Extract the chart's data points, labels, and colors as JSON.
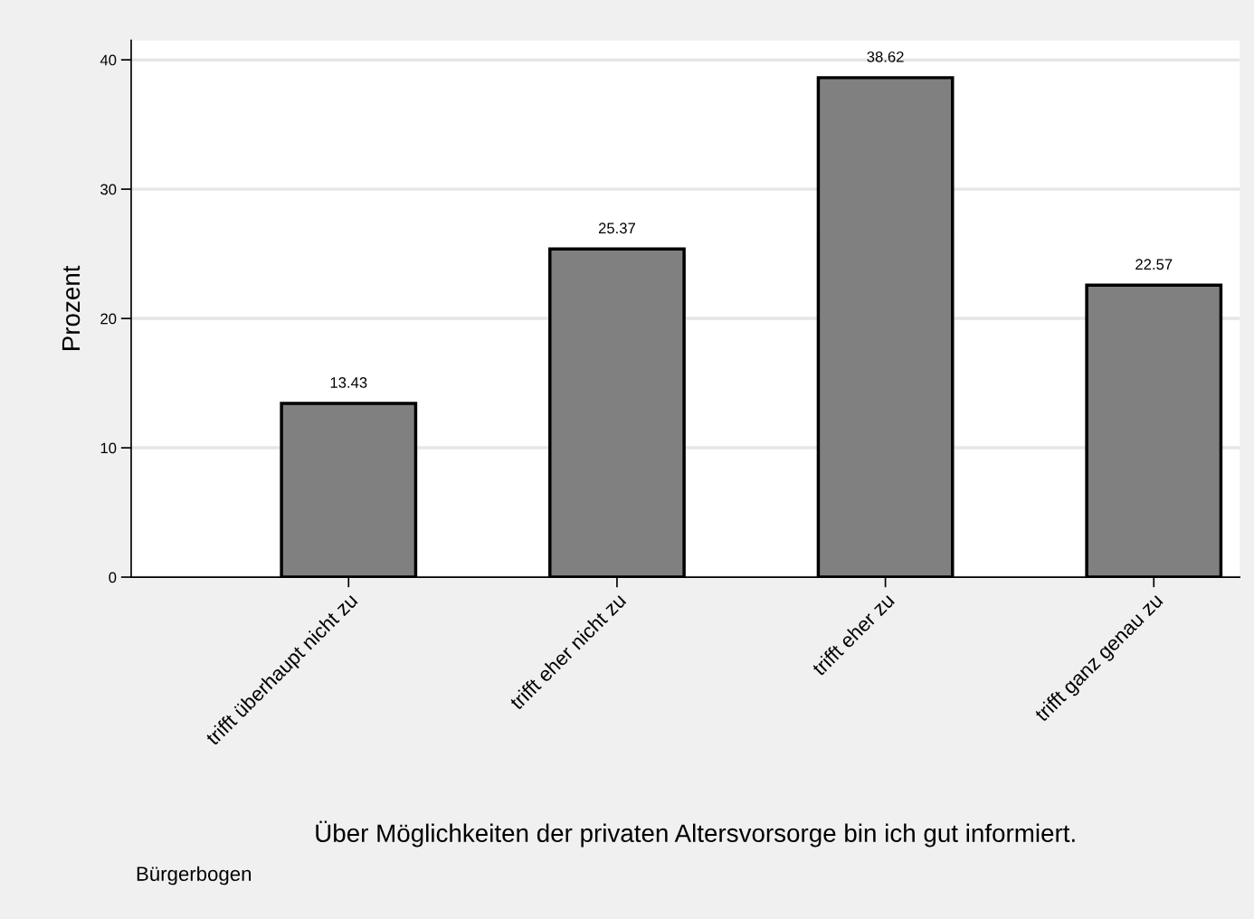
{
  "chart_data": {
    "type": "bar",
    "categories": [
      "trifft überhaupt nicht zu",
      "trifft eher nicht zu",
      "trifft eher zu",
      "trifft ganz genau zu"
    ],
    "values": [
      13.43,
      25.37,
      38.62,
      22.57
    ],
    "color": "#808080",
    "ylabel": "Prozent",
    "xlabel": "Über Möglichkeiten der privaten Altersvorsorge bin ich gut informiert.",
    "annotations": [
      "Bürgerbogen"
    ],
    "ylim": [
      0,
      41.5
    ],
    "yticks": [
      0,
      10,
      20,
      30,
      40
    ],
    "grid": "y",
    "data_labels": true
  }
}
